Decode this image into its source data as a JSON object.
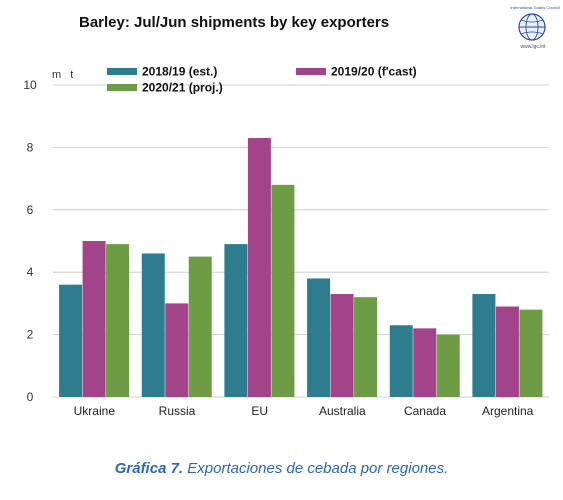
{
  "colors": {
    "series": [
      "#2e7d8f",
      "#a3438a",
      "#6e9c44"
    ],
    "caption": "#2d67b8",
    "logo": "#2a4f9a"
  },
  "logo": {
    "top_text": "International Grains Council",
    "url_text": "www.igc.int",
    "icon": "globe-icon"
  },
  "chart_data": {
    "type": "bar",
    "title": "Barley: Jul/Jun shipments by key exporters",
    "ylabel": "m t",
    "ylim": [
      0,
      10
    ],
    "yticks": [
      0,
      2,
      4,
      6,
      8,
      10
    ],
    "grid": true,
    "legend_position": "top",
    "categories": [
      "Ukraine",
      "Russia",
      "EU",
      "Australia",
      "Canada",
      "Argentina"
    ],
    "series": [
      {
        "name": "2018/19 (est.)",
        "values": [
          3.6,
          4.6,
          4.9,
          3.8,
          2.3,
          3.3
        ]
      },
      {
        "name": "2019/20 (f'cast)",
        "values": [
          5.0,
          3.0,
          8.3,
          3.3,
          2.2,
          2.9
        ]
      },
      {
        "name": "2020/21 (proj.)",
        "values": [
          4.9,
          4.5,
          6.8,
          3.2,
          2.0,
          2.8
        ]
      }
    ]
  },
  "caption": {
    "label": "Gráfica 7.",
    "text": "Exportaciones de cebada por regiones."
  }
}
